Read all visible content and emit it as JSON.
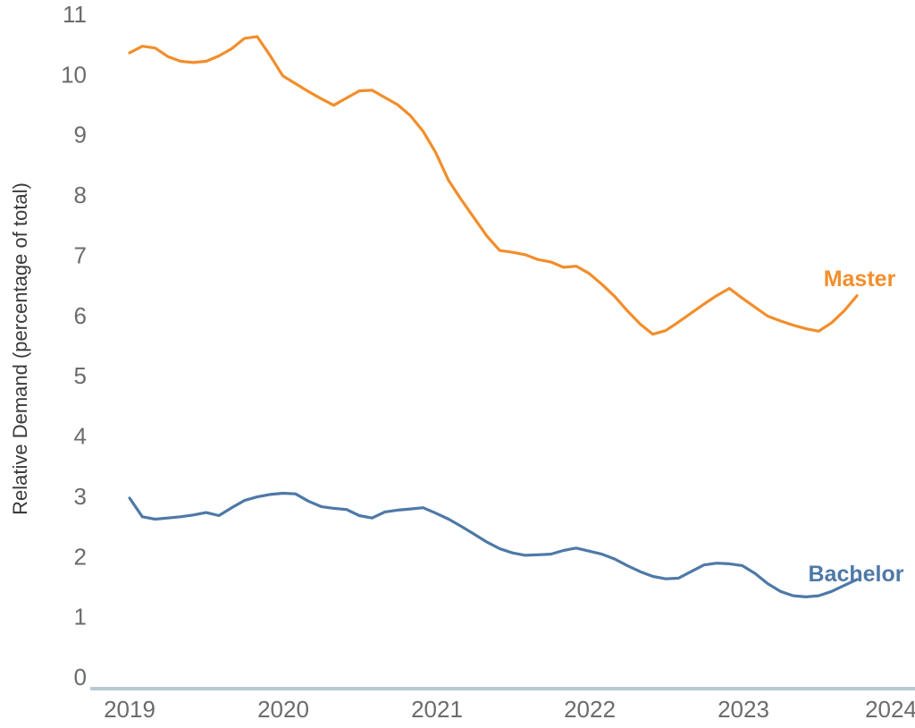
{
  "chart_data": {
    "type": "line",
    "title": "",
    "xlabel": "",
    "ylabel": "Relative Demand (percentage of total)",
    "ylim": [
      0,
      11
    ],
    "yticks": [
      0,
      1,
      2,
      3,
      4,
      5,
      6,
      7,
      8,
      9,
      10,
      11
    ],
    "xtick_labels": [
      "2019",
      "2020",
      "2021",
      "2022",
      "2023",
      "2024"
    ],
    "grid": false,
    "legend_position": "inline-end-of-line-labels",
    "x_months": [
      "2019-01",
      "2019-02",
      "2019-03",
      "2019-04",
      "2019-05",
      "2019-06",
      "2019-07",
      "2019-08",
      "2019-09",
      "2019-10",
      "2019-11",
      "2019-12",
      "2020-01",
      "2020-02",
      "2020-03",
      "2020-04",
      "2020-05",
      "2020-06",
      "2020-07",
      "2020-08",
      "2020-09",
      "2020-10",
      "2020-11",
      "2020-12",
      "2021-01",
      "2021-02",
      "2021-03",
      "2021-04",
      "2021-05",
      "2021-06",
      "2021-07",
      "2021-08",
      "2021-09",
      "2021-10",
      "2021-11",
      "2021-12",
      "2022-01",
      "2022-02",
      "2022-03",
      "2022-04",
      "2022-05",
      "2022-06",
      "2022-07",
      "2022-08",
      "2022-09",
      "2022-10",
      "2022-11",
      "2022-12",
      "2023-01",
      "2023-02",
      "2023-03",
      "2023-04",
      "2023-05",
      "2023-06",
      "2023-07",
      "2023-08",
      "2023-09",
      "2023-10"
    ],
    "series": [
      {
        "name": "Master",
        "color": "#F28E2B",
        "values": [
          10.36,
          10.47,
          10.44,
          10.3,
          10.22,
          10.2,
          10.22,
          10.31,
          10.43,
          10.6,
          10.63,
          10.32,
          9.98,
          9.85,
          9.72,
          9.6,
          9.49,
          9.61,
          9.73,
          9.74,
          9.62,
          9.5,
          9.32,
          9.06,
          8.7,
          8.24,
          7.92,
          7.62,
          7.32,
          7.08,
          7.05,
          7.01,
          6.93,
          6.89,
          6.8,
          6.82,
          6.7,
          6.52,
          6.32,
          6.08,
          5.86,
          5.69,
          5.75,
          5.89,
          6.04,
          6.19,
          6.33,
          6.45,
          6.29,
          6.14,
          5.99,
          5.91,
          5.84,
          5.78,
          5.74,
          5.88,
          6.08,
          6.33
        ]
      },
      {
        "name": "Bachelor",
        "color": "#4E79A7",
        "values": [
          2.97,
          2.66,
          2.62,
          2.64,
          2.66,
          2.69,
          2.73,
          2.68,
          2.81,
          2.93,
          2.99,
          3.03,
          3.05,
          3.04,
          2.92,
          2.83,
          2.8,
          2.78,
          2.68,
          2.64,
          2.74,
          2.77,
          2.79,
          2.81,
          2.72,
          2.62,
          2.5,
          2.37,
          2.24,
          2.13,
          2.06,
          2.02,
          2.03,
          2.04,
          2.1,
          2.14,
          2.09,
          2.04,
          1.96,
          1.85,
          1.75,
          1.67,
          1.63,
          1.64,
          1.75,
          1.86,
          1.89,
          1.88,
          1.85,
          1.72,
          1.55,
          1.42,
          1.35,
          1.33,
          1.35,
          1.42,
          1.52,
          1.62
        ]
      }
    ]
  },
  "colors": {
    "background": "#FFFFFF",
    "axis_line": "#B8C9D2",
    "tick_text": "#6B6B6B",
    "axis_title_text": "#3A3A3A",
    "master": "#F28E2B",
    "bachelor": "#4E79A7"
  }
}
